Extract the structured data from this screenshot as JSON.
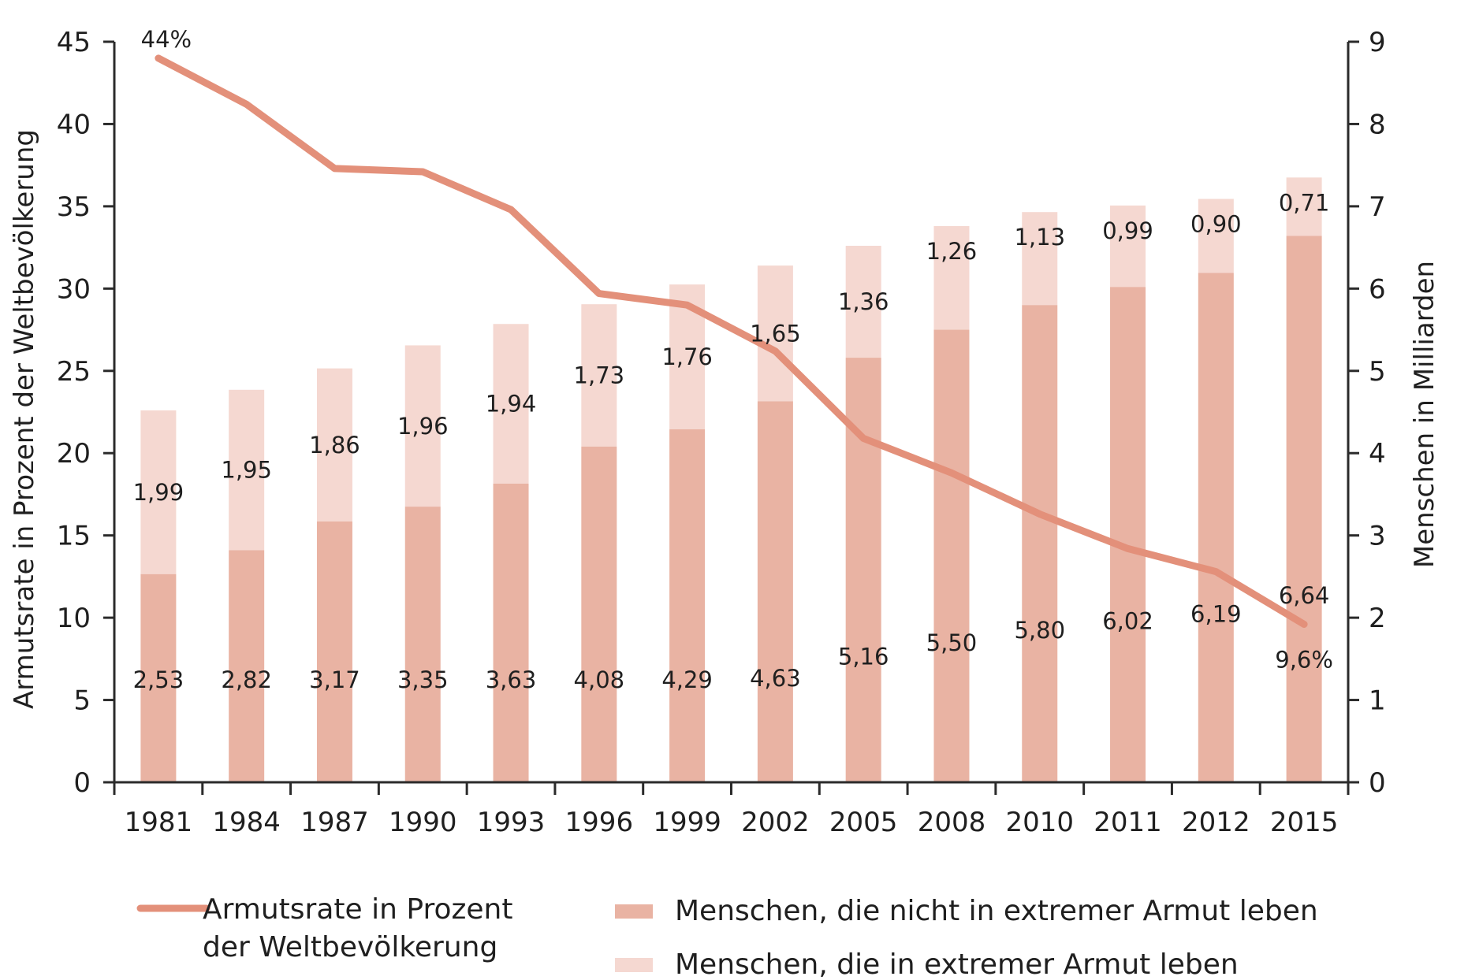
{
  "chart_data": {
    "type": "bar+line",
    "categories": [
      "1981",
      "1984",
      "1987",
      "1990",
      "1993",
      "1996",
      "1999",
      "2002",
      "2005",
      "2008",
      "2010",
      "2011",
      "2012",
      "2015"
    ],
    "series": [
      {
        "name": "Armutsrate in Prozent der Weltbevölkerung",
        "type": "line",
        "axis": "left",
        "values": [
          44,
          41.2,
          37.3,
          37.1,
          34.8,
          29.7,
          29.0,
          26.2,
          20.9,
          18.8,
          16.3,
          14.2,
          12.8,
          9.6
        ]
      },
      {
        "name": "Menschen, die nicht in extremer Armut leben",
        "type": "bar",
        "axis": "right",
        "stack": 1,
        "values": [
          2.53,
          2.82,
          3.17,
          3.35,
          3.63,
          4.08,
          4.29,
          4.63,
          5.16,
          5.5,
          5.8,
          6.02,
          6.19,
          6.64
        ],
        "labels": [
          "2,53",
          "2,82",
          "3,17",
          "3,35",
          "3,63",
          "4,08",
          "4,29",
          "4,63",
          "5,16",
          "5,50",
          "5,80",
          "6,02",
          "6,19",
          "6,64"
        ]
      },
      {
        "name": "Menschen, die in extremer Armut leben",
        "type": "bar",
        "axis": "right",
        "stack": 2,
        "values": [
          1.99,
          1.95,
          1.86,
          1.96,
          1.94,
          1.73,
          1.76,
          1.65,
          1.36,
          1.26,
          1.13,
          0.99,
          0.9,
          0.71
        ],
        "labels": [
          "1,99",
          "1,95",
          "1,86",
          "1,96",
          "1,94",
          "1,73",
          "1,76",
          "1,65",
          "1,36",
          "1,26",
          "1,13",
          "0,99",
          "0,90",
          "0,71"
        ]
      }
    ],
    "line_annotations": {
      "first": "44%",
      "last": "9,6%"
    },
    "y_left": {
      "label": "Armutsrate in Prozent der Weltbevölkerung",
      "ticks": [
        0,
        5,
        10,
        15,
        20,
        25,
        30,
        35,
        40,
        45
      ],
      "ylim": [
        0,
        45
      ]
    },
    "y_right": {
      "label": "Menschen in Milliarden",
      "ticks": [
        0,
        1,
        2,
        3,
        4,
        5,
        6,
        7,
        8,
        9
      ],
      "ylim": [
        0,
        9
      ]
    },
    "grid": false,
    "legend_position": "bottom",
    "legend": {
      "line_lines": [
        "Armutsrate in Prozent",
        "der Weltbevölkerung"
      ],
      "bar1": "Menschen, die nicht in extremer Armut leben",
      "bar2": "Menschen, die in extremer Armut leben"
    },
    "colors": {
      "line": "#e3907a",
      "bar_dark": "#e9b3a3",
      "bar_light": "#f5d8d1",
      "axis": "#2b2b2b"
    }
  }
}
